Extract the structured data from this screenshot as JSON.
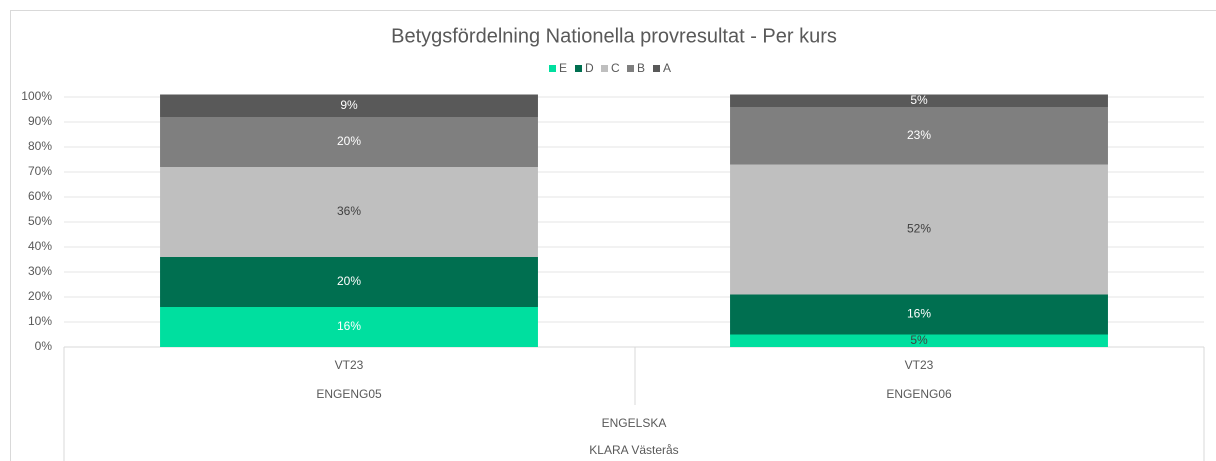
{
  "chart_data": {
    "type": "stacked_bar",
    "title": "Betygsfördelning Nationella provresultat - Per kurs",
    "categories": [
      "VT23",
      "VT23"
    ],
    "courses": [
      "ENGENG05",
      "ENGENG06"
    ],
    "subject": "ENGELSKA",
    "school": "KLARA Västerås",
    "series": [
      {
        "name": "E",
        "color": "#00df9f",
        "values": [
          16,
          5
        ],
        "value_labels": [
          "16%",
          "5%"
        ]
      },
      {
        "name": "D",
        "color": "#006f50",
        "values": [
          20,
          16
        ],
        "value_labels": [
          "20%",
          "16%"
        ]
      },
      {
        "name": "C",
        "color": "#bfbfbf",
        "values": [
          36,
          52
        ],
        "value_labels": [
          "36%",
          "52%"
        ]
      },
      {
        "name": "B",
        "color": "#7f7f7f",
        "values": [
          20,
          23
        ],
        "value_labels": [
          "20%",
          "23%"
        ]
      },
      {
        "name": "A",
        "color": "#595959",
        "values": [
          9,
          5
        ],
        "value_labels": [
          "9%",
          "5%"
        ]
      }
    ],
    "ylim": [
      0,
      100
    ],
    "yticks": [
      {
        "value": 0,
        "label": "0%"
      },
      {
        "value": 10,
        "label": "10%"
      },
      {
        "value": 20,
        "label": "20%"
      },
      {
        "value": 30,
        "label": "30%"
      },
      {
        "value": 40,
        "label": "40%"
      },
      {
        "value": 50,
        "label": "50%"
      },
      {
        "value": 60,
        "label": "60%"
      },
      {
        "value": 70,
        "label": "70%"
      },
      {
        "value": 80,
        "label": "80%"
      },
      {
        "value": 90,
        "label": "90%"
      },
      {
        "value": 100,
        "label": "100%"
      }
    ],
    "grid": true,
    "legend": "top"
  }
}
